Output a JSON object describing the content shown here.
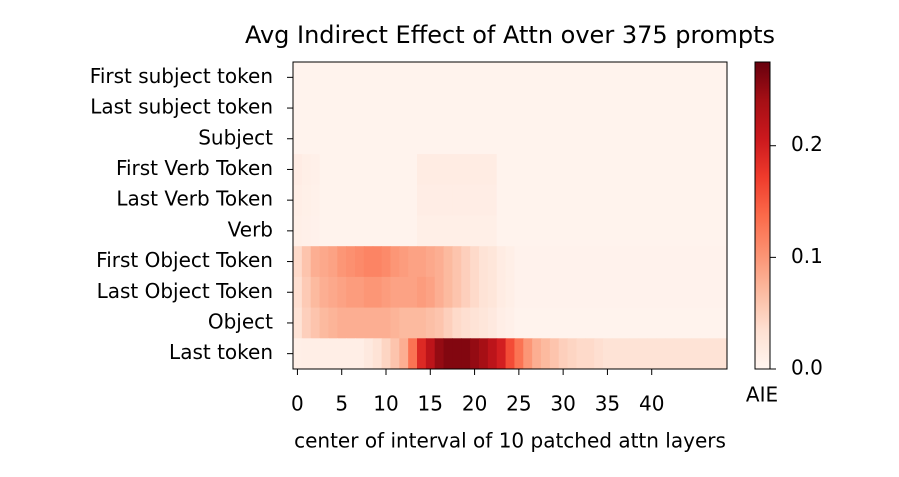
{
  "chart_data": {
    "type": "heatmap",
    "title": "Avg Indirect Effect of Attn over 375 prompts",
    "xlabel": "center of interval of 10 patched attn layers",
    "rows": [
      "First subject token",
      "Last subject token",
      "Subject",
      "First Verb Token",
      "Last Verb Token",
      "Verb",
      "First Object Token",
      "Last Object Token",
      "Object",
      "Last token"
    ],
    "x": [
      0,
      1,
      2,
      3,
      4,
      5,
      6,
      7,
      8,
      9,
      10,
      11,
      12,
      13,
      14,
      15,
      16,
      17,
      18,
      19,
      20,
      21,
      22,
      23,
      24,
      25,
      26,
      27,
      28,
      29,
      30,
      31,
      32,
      33,
      34,
      35,
      36,
      37,
      38,
      39,
      40,
      41,
      42,
      43,
      44,
      45,
      46,
      47,
      48
    ],
    "xlim": [
      -0.5,
      48.5
    ],
    "xticks": [
      0,
      5,
      10,
      15,
      20,
      25,
      30,
      35,
      40
    ],
    "colormap": "Reds",
    "vlim": [
      0,
      0.275
    ],
    "colorbar_ticks": [
      {
        "value": 0,
        "label": "0.0"
      },
      0.1,
      0.2
    ],
    "colorbar_label": "AIE",
    "values": [
      [
        0.004,
        0.004,
        0.004,
        0.004,
        0.004,
        0.004,
        0.004,
        0.004,
        0.004,
        0.004,
        0.004,
        0.004,
        0.004,
        0.004,
        0.004,
        0.004,
        0.004,
        0.004,
        0.004,
        0.004,
        0.004,
        0.004,
        0.004,
        0.004,
        0.004,
        0.004,
        0.004,
        0.004,
        0.004,
        0.004,
        0.004,
        0.004,
        0.004,
        0.004,
        0.004,
        0.004,
        0.004,
        0.004,
        0.004,
        0.004,
        0.004,
        0.004,
        0.004,
        0.004,
        0.004,
        0.004,
        0.004,
        0.004,
        0.004
      ],
      [
        0.004,
        0.004,
        0.004,
        0.004,
        0.004,
        0.004,
        0.004,
        0.004,
        0.004,
        0.004,
        0.004,
        0.004,
        0.004,
        0.004,
        0.004,
        0.004,
        0.004,
        0.004,
        0.004,
        0.004,
        0.004,
        0.004,
        0.004,
        0.004,
        0.004,
        0.004,
        0.004,
        0.004,
        0.004,
        0.004,
        0.004,
        0.004,
        0.004,
        0.004,
        0.004,
        0.004,
        0.004,
        0.004,
        0.004,
        0.004,
        0.004,
        0.004,
        0.004,
        0.004,
        0.004,
        0.004,
        0.004,
        0.004,
        0.004
      ],
      [
        0.004,
        0.004,
        0.004,
        0.004,
        0.004,
        0.004,
        0.004,
        0.004,
        0.004,
        0.004,
        0.004,
        0.004,
        0.004,
        0.004,
        0.004,
        0.004,
        0.004,
        0.004,
        0.004,
        0.004,
        0.004,
        0.004,
        0.004,
        0.004,
        0.004,
        0.004,
        0.004,
        0.004,
        0.004,
        0.004,
        0.004,
        0.004,
        0.004,
        0.004,
        0.004,
        0.004,
        0.004,
        0.004,
        0.004,
        0.004,
        0.004,
        0.004,
        0.004,
        0.004,
        0.004,
        0.004,
        0.004,
        0.004,
        0.004
      ],
      [
        0.014,
        0.01,
        0.008,
        0.004,
        0.004,
        0.004,
        0.004,
        0.004,
        0.004,
        0.004,
        0.004,
        0.004,
        0.004,
        0.004,
        0.015,
        0.015,
        0.015,
        0.015,
        0.015,
        0.015,
        0.015,
        0.015,
        0.015,
        0.004,
        0.004,
        0.004,
        0.004,
        0.004,
        0.004,
        0.004,
        0.004,
        0.004,
        0.004,
        0.004,
        0.004,
        0.004,
        0.004,
        0.004,
        0.004,
        0.004,
        0.004,
        0.004,
        0.004,
        0.004,
        0.004,
        0.004,
        0.004,
        0.004,
        0.004
      ],
      [
        0.012,
        0.009,
        0.007,
        0.004,
        0.004,
        0.004,
        0.004,
        0.004,
        0.004,
        0.004,
        0.004,
        0.004,
        0.004,
        0.004,
        0.013,
        0.013,
        0.013,
        0.013,
        0.013,
        0.013,
        0.013,
        0.013,
        0.013,
        0.004,
        0.004,
        0.004,
        0.004,
        0.004,
        0.004,
        0.004,
        0.004,
        0.004,
        0.004,
        0.004,
        0.004,
        0.004,
        0.004,
        0.004,
        0.004,
        0.004,
        0.004,
        0.004,
        0.004,
        0.004,
        0.004,
        0.004,
        0.004,
        0.004,
        0.004
      ],
      [
        0.01,
        0.008,
        0.006,
        0.004,
        0.004,
        0.004,
        0.004,
        0.004,
        0.004,
        0.004,
        0.004,
        0.004,
        0.004,
        0.004,
        0.01,
        0.01,
        0.01,
        0.01,
        0.01,
        0.01,
        0.01,
        0.01,
        0.01,
        0.004,
        0.004,
        0.004,
        0.004,
        0.004,
        0.004,
        0.004,
        0.004,
        0.004,
        0.004,
        0.004,
        0.004,
        0.004,
        0.004,
        0.004,
        0.004,
        0.004,
        0.004,
        0.004,
        0.004,
        0.004,
        0.004,
        0.004,
        0.004,
        0.004,
        0.004
      ],
      [
        0.04,
        0.06,
        0.08,
        0.085,
        0.09,
        0.1,
        0.105,
        0.11,
        0.115,
        0.115,
        0.11,
        0.1,
        0.095,
        0.09,
        0.09,
        0.085,
        0.08,
        0.07,
        0.06,
        0.05,
        0.04,
        0.03,
        0.025,
        0.015,
        0.01,
        0.005,
        0.005,
        0.005,
        0.005,
        0.005,
        0.005,
        0.005,
        0.005,
        0.005,
        0.005,
        0.005,
        0.005,
        0.005,
        0.005,
        0.005,
        0.005,
        0.005,
        0.005,
        0.005,
        0.005,
        0.005,
        0.005,
        0.005,
        0.005
      ],
      [
        0.035,
        0.055,
        0.07,
        0.08,
        0.085,
        0.09,
        0.095,
        0.095,
        0.1,
        0.1,
        0.095,
        0.09,
        0.09,
        0.09,
        0.095,
        0.09,
        0.08,
        0.07,
        0.06,
        0.05,
        0.04,
        0.03,
        0.025,
        0.015,
        0.01,
        0.005,
        0.005,
        0.005,
        0.005,
        0.005,
        0.005,
        0.005,
        0.005,
        0.005,
        0.005,
        0.005,
        0.005,
        0.005,
        0.005,
        0.005,
        0.005,
        0.005,
        0.005,
        0.005,
        0.005,
        0.005,
        0.005,
        0.005,
        0.005
      ],
      [
        0.03,
        0.05,
        0.06,
        0.07,
        0.075,
        0.08,
        0.08,
        0.08,
        0.08,
        0.08,
        0.08,
        0.075,
        0.07,
        0.07,
        0.07,
        0.065,
        0.06,
        0.05,
        0.04,
        0.035,
        0.03,
        0.025,
        0.02,
        0.012,
        0.008,
        0.004,
        0.004,
        0.004,
        0.004,
        0.004,
        0.004,
        0.004,
        0.004,
        0.004,
        0.004,
        0.004,
        0.004,
        0.004,
        0.004,
        0.004,
        0.004,
        0.004,
        0.004,
        0.004,
        0.004,
        0.004,
        0.004,
        0.004,
        0.004
      ],
      [
        0.01,
        0.012,
        0.012,
        0.012,
        0.012,
        0.012,
        0.012,
        0.012,
        0.02,
        0.03,
        0.045,
        0.06,
        0.08,
        0.13,
        0.19,
        0.22,
        0.25,
        0.26,
        0.26,
        0.26,
        0.25,
        0.24,
        0.22,
        0.2,
        0.16,
        0.13,
        0.1,
        0.08,
        0.07,
        0.06,
        0.05,
        0.045,
        0.04,
        0.04,
        0.035,
        0.03,
        0.03,
        0.03,
        0.03,
        0.03,
        0.03,
        0.03,
        0.03,
        0.03,
        0.03,
        0.03,
        0.03,
        0.03,
        0.03
      ]
    ]
  }
}
